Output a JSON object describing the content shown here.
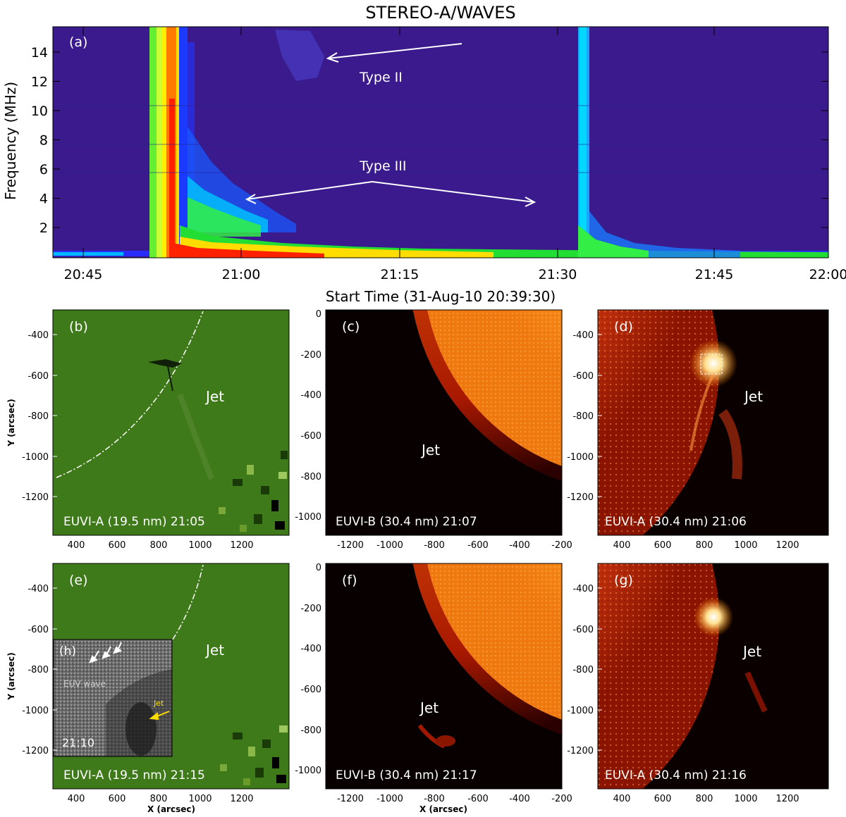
{
  "spectrogram": {
    "title": "STEREO-A/WAVES",
    "label": "(a)",
    "ylabel": "Frequency (MHz)",
    "xlabel": "Start Time (31-Aug-10 20:39:30)",
    "yticks": [
      "2",
      "4",
      "6",
      "8",
      "10",
      "12",
      "14"
    ],
    "xticks": [
      "20:45",
      "21:00",
      "21:15",
      "21:30",
      "21:45",
      "22:00"
    ],
    "type2_label": "Type II",
    "type3_label": "Type III",
    "colors": {
      "background": "#3a1a8c",
      "hot": "#ff1a00",
      "warm": "#ffdd00",
      "mid": "#33ee44",
      "cool": "#00ccff",
      "blue": "#1a2aff"
    }
  },
  "panels": {
    "b": {
      "label": "(b)",
      "caption": "EUVI-A (19.5 nm) 21:05",
      "jet_label": "Jet"
    },
    "c": {
      "label": "(c)",
      "caption": "EUVI-B (30.4 nm) 21:07",
      "jet_label": "Jet"
    },
    "d": {
      "label": "(d)",
      "caption": "EUVI-A (30.4 nm) 21:06",
      "jet_label": "Jet"
    },
    "e": {
      "label": "(e)",
      "caption": "EUVI-A (19.5 nm) 21:15",
      "jet_label": "Jet"
    },
    "f": {
      "label": "(f)",
      "caption": "EUVI-B (30.4 nm) 21:17",
      "jet_label": "Jet"
    },
    "g": {
      "label": "(g)",
      "caption": "EUVI-A (30.4 nm) 21:16",
      "jet_label": "Jet"
    },
    "h": {
      "label": "(h)",
      "wave_label": "EUV wave",
      "jet_label": "Jet",
      "time": "21:10"
    }
  },
  "axes": {
    "y_label": "Y (arcsec)",
    "x_label": "X (arcsec)",
    "a_yticks": [
      "-400",
      "-600",
      "-800",
      "-1000",
      "-1200"
    ],
    "a_xticks": [
      "400",
      "600",
      "800",
      "1000",
      "1200"
    ],
    "b_yticks": [
      "0",
      "-200",
      "-400",
      "-600",
      "-800",
      "-1000"
    ],
    "b_xticks": [
      "-1200",
      "-1000",
      "-800",
      "-600",
      "-400",
      "-200"
    ]
  }
}
